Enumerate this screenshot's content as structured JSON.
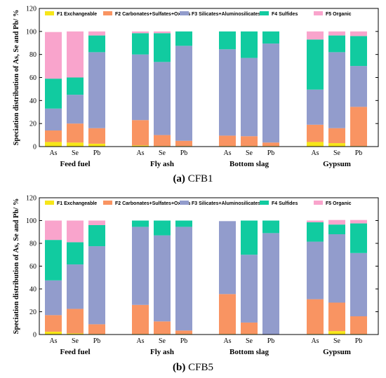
{
  "chart_data": [
    {
      "type": "bar",
      "stacked": true,
      "caption_letter": "(a)",
      "caption_text": "CFB1",
      "ylabel": "Speciation distribution of As, Se and Pb/ %",
      "ylim": [
        0,
        120
      ],
      "yticks": [
        0,
        20,
        40,
        60,
        80,
        100,
        120
      ],
      "groups": [
        "Feed fuel",
        "Fly ash",
        "Bottom slag",
        "Gypsum"
      ],
      "categories": [
        "As",
        "Se",
        "Pb"
      ],
      "series": [
        {
          "name": "F1 Exchangeable",
          "color": "#f6e619",
          "values": [
            [
              4,
              3.5,
              2.5
            ],
            [
              1,
              0.5,
              0.5
            ],
            [
              0.5,
              0.5,
              0.5
            ],
            [
              4,
              3,
              0.5
            ]
          ]
        },
        {
          "name": "F2 Carbonates+Sulfates+Oxides",
          "color": "#f99462",
          "values": [
            [
              10,
              16.5,
              13.5
            ],
            [
              22,
              9.5,
              4.5
            ],
            [
              9,
              8.5,
              3
            ],
            [
              15,
              13,
              34
            ]
          ]
        },
        {
          "name": "F3 Silicates+Aluminosilicates",
          "color": "#929ccc",
          "values": [
            [
              19,
              25,
              66
            ],
            [
              57,
              63.5,
              82.5
            ],
            [
              75,
              68,
              86
            ],
            [
              30.5,
              66,
              35.5
            ]
          ]
        },
        {
          "name": "F4 Sulfides",
          "color": "#11cba0",
          "values": [
            [
              26,
              15,
              14.5
            ],
            [
              18.5,
              25,
              12.5
            ],
            [
              15.5,
              23,
              10.5
            ],
            [
              43.5,
              14.5,
              26
            ]
          ]
        },
        {
          "name": "F5 Organic",
          "color": "#f9a4cc",
          "values": [
            [
              40.5,
              40,
              3.5
            ],
            [
              1.5,
              1.5,
              0
            ],
            [
              0,
              0,
              0
            ],
            [
              7,
              3.5,
              4
            ]
          ]
        }
      ]
    },
    {
      "type": "bar",
      "stacked": true,
      "caption_letter": "(b)",
      "caption_text": "CFB5",
      "ylabel": "Speciation distribution of As, Se and Pb/ %",
      "ylim": [
        0,
        120
      ],
      "yticks": [
        0,
        20,
        40,
        60,
        80,
        100,
        120
      ],
      "groups": [
        "Feed fuel",
        "Fly ash",
        "Bottom slag",
        "Gypsum"
      ],
      "categories": [
        "As",
        "Se",
        "Pb"
      ],
      "series": [
        {
          "name": "F1 Exchangeable",
          "color": "#f6e619",
          "values": [
            [
              2.5,
              1,
              0.5
            ],
            [
              0.5,
              0.5,
              0.5
            ],
            [
              0.5,
              0.5,
              0
            ],
            [
              0.5,
              3,
              0.5
            ]
          ]
        },
        {
          "name": "F2 Carbonates+Sulfates+Oxides",
          "color": "#f99462",
          "values": [
            [
              14.5,
              21.5,
              8.5
            ],
            [
              25.5,
              11,
              3
            ],
            [
              35,
              10,
              0
            ],
            [
              30.5,
              25,
              15.5
            ]
          ]
        },
        {
          "name": "F3 Silicates+Aluminosilicates",
          "color": "#929ccc",
          "values": [
            [
              30.5,
              39,
              68.5
            ],
            [
              68.5,
              75.5,
              91
            ],
            [
              64,
              59.5,
              89
            ],
            [
              50.5,
              60,
              55.5
            ]
          ]
        },
        {
          "name": "F4 Sulfides",
          "color": "#11cba0",
          "values": [
            [
              35.5,
              19.5,
              18.5
            ],
            [
              5.5,
              13,
              5.5
            ],
            [
              0,
              30,
              11
            ],
            [
              17,
              8.5,
              26
            ]
          ]
        },
        {
          "name": "F5 Organic",
          "color": "#f9a4cc",
          "values": [
            [
              17,
              19,
              4
            ],
            [
              0,
              0,
              0
            ],
            [
              0,
              0,
              0
            ],
            [
              1.5,
              4,
              3
            ]
          ]
        }
      ]
    }
  ]
}
